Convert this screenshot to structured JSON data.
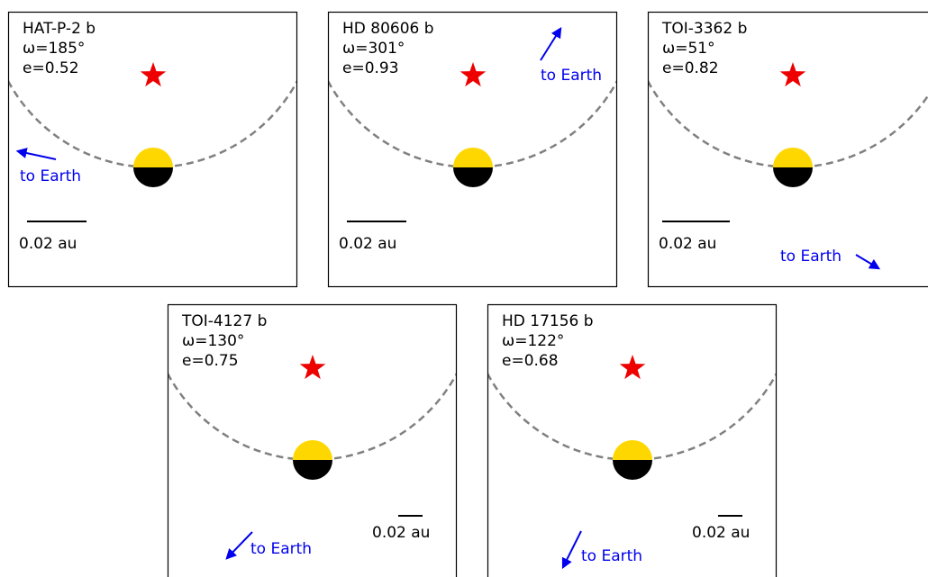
{
  "panels": [
    {
      "name": "HAT-P-2 b",
      "omega": "ω=185°",
      "e": "e=0.52",
      "scale": "0.02 au",
      "earth": "to Earth"
    },
    {
      "name": "HD 80606 b",
      "omega": "ω=301°",
      "e": "e=0.93",
      "scale": "0.02 au",
      "earth": "to Earth"
    },
    {
      "name": "TOI-3362 b",
      "omega": "ω=51°",
      "e": "e=0.82",
      "scale": "0.02 au",
      "earth": "to Earth"
    },
    {
      "name": "TOI-4127 b",
      "omega": "ω=130°",
      "e": "e=0.75",
      "scale": "0.02 au",
      "earth": "to Earth"
    },
    {
      "name": "HD 17156 b",
      "omega": "ω=122°",
      "e": "e=0.68",
      "scale": "0.02 au",
      "earth": "to Earth"
    }
  ]
}
